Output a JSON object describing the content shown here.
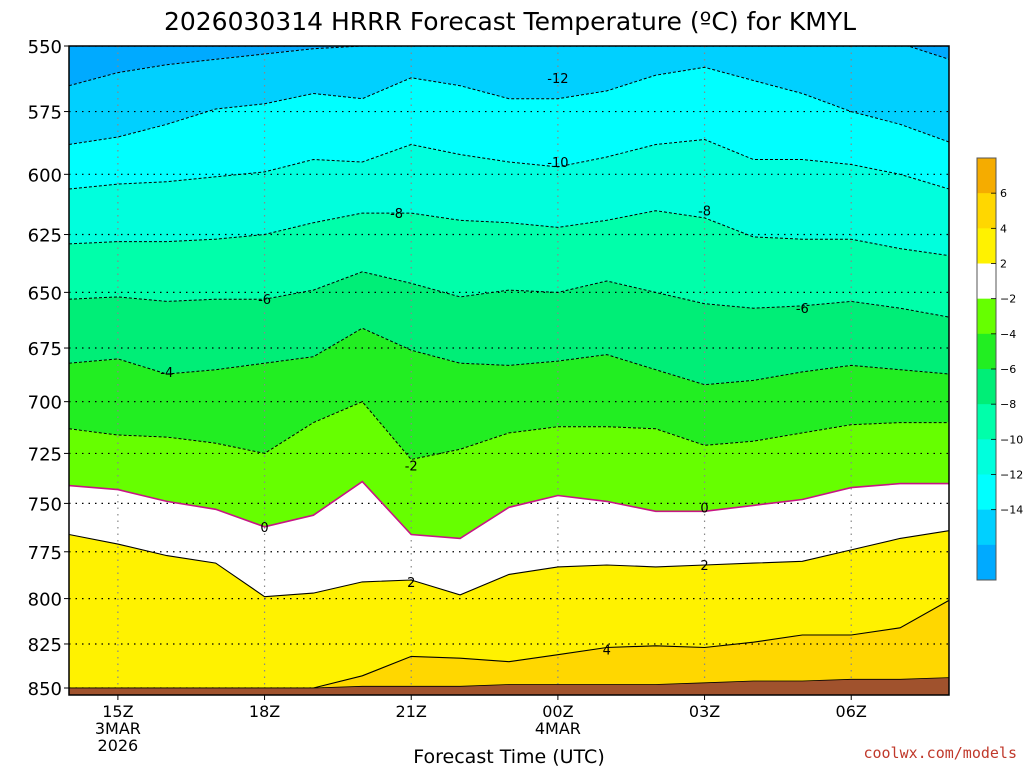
{
  "chart_data": {
    "type": "heatmap",
    "title": "2026030314 HRRR Forecast Temperature (ºC) for KMYL",
    "xlabel": "Forecast Time (UTC)",
    "ylabel": "",
    "x_ticks": [
      {
        "hour": 15,
        "lines": [
          "15Z",
          "3MAR",
          "2026"
        ]
      },
      {
        "hour": 18,
        "lines": [
          "18Z"
        ]
      },
      {
        "hour": 21,
        "lines": [
          "21Z"
        ]
      },
      {
        "hour": 24,
        "lines": [
          "00Z",
          "4MAR"
        ]
      },
      {
        "hour": 27,
        "lines": [
          "03Z"
        ]
      },
      {
        "hour": 30,
        "lines": [
          "06Z"
        ]
      }
    ],
    "xlim": [
      14,
      32
    ],
    "y_ticks": [
      550,
      575,
      600,
      625,
      650,
      675,
      700,
      725,
      750,
      775,
      800,
      825,
      850
    ],
    "ylim": [
      550,
      853
    ],
    "y_scale": "log-pressure",
    "grid": "on",
    "x_hours": [
      14,
      15,
      16,
      17,
      18,
      19,
      20,
      21,
      22,
      23,
      24,
      25,
      26,
      27,
      28,
      29,
      30,
      31,
      32
    ],
    "contours": [
      {
        "level": -14,
        "pressure": [
          565,
          560,
          557,
          555,
          553,
          551,
          550,
          549,
          549,
          549,
          549,
          549,
          549,
          549,
          549,
          549,
          549,
          549,
          555
        ]
      },
      {
        "level": -12,
        "pressure": [
          588,
          585,
          580,
          574,
          572,
          568,
          570,
          562,
          565,
          570,
          570,
          567,
          561,
          558,
          563,
          568,
          575,
          580,
          587
        ]
      },
      {
        "level": -10,
        "pressure": [
          606,
          604,
          603,
          601,
          599,
          594,
          595,
          588,
          592,
          595,
          597,
          593,
          588,
          586,
          594,
          594,
          596,
          600,
          606
        ]
      },
      {
        "level": -8,
        "pressure": [
          629,
          628,
          628,
          627,
          625,
          620,
          616,
          616,
          619,
          620,
          622,
          619,
          615,
          618,
          626,
          627,
          627,
          631,
          634
        ]
      },
      {
        "level": -6,
        "pressure": [
          653,
          652,
          654,
          653,
          653,
          649,
          641,
          646,
          652,
          649,
          650,
          645,
          650,
          655,
          657,
          656,
          654,
          657,
          661
        ]
      },
      {
        "level": -4,
        "pressure": [
          682,
          680,
          687,
          685,
          682,
          679,
          666,
          676,
          682,
          683,
          681,
          678,
          685,
          692,
          690,
          686,
          683,
          685,
          687
        ]
      },
      {
        "level": -2,
        "pressure": [
          713,
          716,
          717,
          720,
          725,
          710,
          700,
          728,
          723,
          715,
          712,
          712,
          713,
          721,
          719,
          715,
          711,
          710,
          710
        ]
      },
      {
        "level": 0,
        "pressure": [
          741,
          743,
          749,
          753,
          762,
          756,
          739,
          766,
          768,
          752,
          746,
          749,
          754,
          754,
          751,
          748,
          742,
          740,
          740
        ]
      },
      {
        "level": 2,
        "pressure": [
          766,
          771,
          777,
          781,
          799,
          797,
          791,
          790,
          798,
          787,
          783,
          782,
          783,
          782,
          781,
          780,
          774,
          768,
          764
        ]
      },
      {
        "level": 4,
        "pressure": [
          850,
          850,
          850,
          850,
          850,
          850,
          843,
          832,
          833,
          835,
          831,
          827,
          826,
          827,
          824,
          820,
          820,
          816,
          801
        ]
      },
      {
        "level": 6,
        "pressure": [
          853,
          853,
          853,
          853,
          853,
          853,
          853,
          853,
          853,
          852,
          851,
          851,
          851,
          850,
          849,
          849,
          849,
          846,
          845
        ]
      }
    ],
    "surface_pressure": [
      850,
      850,
      850,
      850,
      850,
      850,
      849,
      849,
      849,
      848,
      848,
      848,
      848,
      847,
      846,
      846,
      845,
      845,
      844
    ],
    "contour_labels": [
      {
        "text": "-12",
        "hour": 24,
        "pressure": 562
      },
      {
        "text": "-10",
        "hour": 24,
        "pressure": 595
      },
      {
        "text": "-8",
        "hour": 20.7,
        "pressure": 616
      },
      {
        "text": "-8",
        "hour": 27,
        "pressure": 615
      },
      {
        "text": "-6",
        "hour": 18,
        "pressure": 653
      },
      {
        "text": "-6",
        "hour": 29,
        "pressure": 657
      },
      {
        "text": "-4",
        "hour": 16,
        "pressure": 686
      },
      {
        "text": "-2",
        "hour": 21,
        "pressure": 731
      },
      {
        "text": "0",
        "hour": 18,
        "pressure": 762
      },
      {
        "text": "0",
        "hour": 27,
        "pressure": 752
      },
      {
        "text": "2",
        "hour": 21,
        "pressure": 791
      },
      {
        "text": "2",
        "hour": 27,
        "pressure": 782
      },
      {
        "text": "4",
        "hour": 25,
        "pressure": 828
      }
    ],
    "colorbar": {
      "tick_labels": [
        "6",
        "4",
        "2",
        "−2",
        "−4",
        "−6",
        "−8",
        "−10",
        "−12",
        "−14"
      ],
      "colors": [
        "#f5ac00",
        "#ffd700",
        "#fff200",
        "#ffffff",
        "#66ff00",
        "#22ee22",
        "#00ee77",
        "#00ffaa",
        "#00ffdd",
        "#00ffff",
        "#00d0ff",
        "#00aaff"
      ]
    },
    "colors": {
      "surface": "#a0522d",
      "freezing_line": "#c71585",
      "warm_contour": "#000000",
      "cold_contour": "#000000"
    }
  },
  "credit": "coolwx.com/models"
}
